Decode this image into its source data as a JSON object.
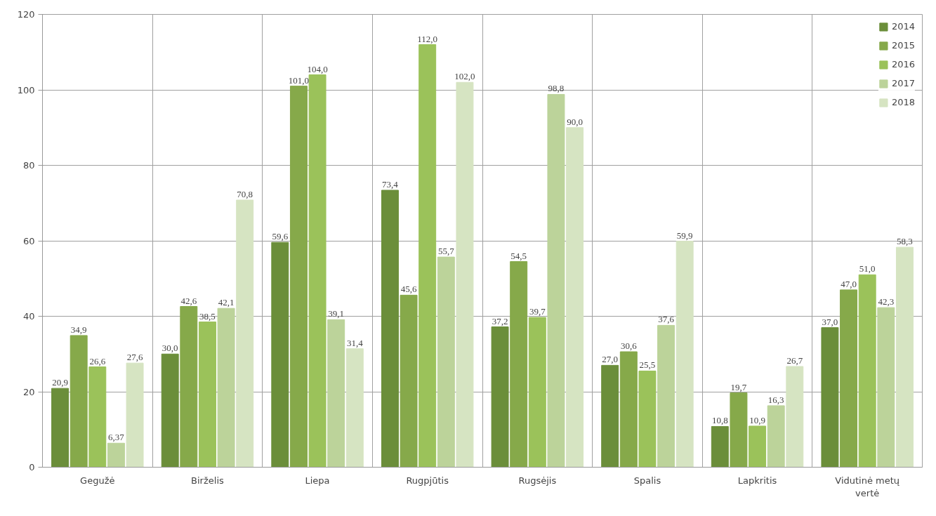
{
  "chart_data": {
    "type": "bar",
    "categories": [
      "Gegužė",
      "Birželis",
      "Liepa",
      "Rugpjūtis",
      "Rugsėjis",
      "Spalis",
      "Lapkritis",
      "Vidutinė metų vertė"
    ],
    "series": [
      {
        "name": "2014",
        "color": "#6b8e3a",
        "values": [
          20.9,
          30.0,
          59.6,
          73.4,
          37.2,
          27.0,
          10.8,
          37.0
        ],
        "value_labels": [
          "20,9",
          "30,0",
          "59,6",
          "73,4",
          "37,2",
          "27,0",
          "10,8",
          "37,0"
        ]
      },
      {
        "name": "2015",
        "color": "#86a94a",
        "values": [
          34.9,
          42.6,
          101.0,
          45.6,
          54.5,
          30.6,
          19.7,
          47.0
        ],
        "value_labels": [
          "34,9",
          "42,6",
          "101,0",
          "45,6",
          "54,5",
          "30,6",
          "19,7",
          "47,0"
        ]
      },
      {
        "name": "2016",
        "color": "#9bc25a",
        "values": [
          26.6,
          38.5,
          104.0,
          112.0,
          39.7,
          25.5,
          10.9,
          51.0
        ],
        "value_labels": [
          "26,6",
          "38,5",
          "104,0",
          "112,0",
          "39,7",
          "25,5",
          "10,9",
          "51,0"
        ]
      },
      {
        "name": "2017",
        "color": "#bcd39a",
        "values": [
          6.37,
          42.1,
          39.1,
          55.7,
          98.8,
          37.6,
          16.3,
          42.3
        ],
        "value_labels": [
          "6,37",
          "42,1",
          "39,1",
          "55,7",
          "98,8",
          "37,6",
          "16,3",
          "42,3"
        ]
      },
      {
        "name": "2018",
        "color": "#d6e4c2",
        "values": [
          27.6,
          70.8,
          31.4,
          102.0,
          90.0,
          59.9,
          26.7,
          58.3
        ],
        "value_labels": [
          "27,6",
          "70,8",
          "31,4",
          "102,0",
          "90,0",
          "59,9",
          "26,7",
          "58,3"
        ]
      }
    ],
    "ylim": [
      0,
      120
    ],
    "yticks": [
      0,
      20,
      40,
      60,
      80,
      100,
      120
    ],
    "grid": true,
    "legend": "top right"
  }
}
